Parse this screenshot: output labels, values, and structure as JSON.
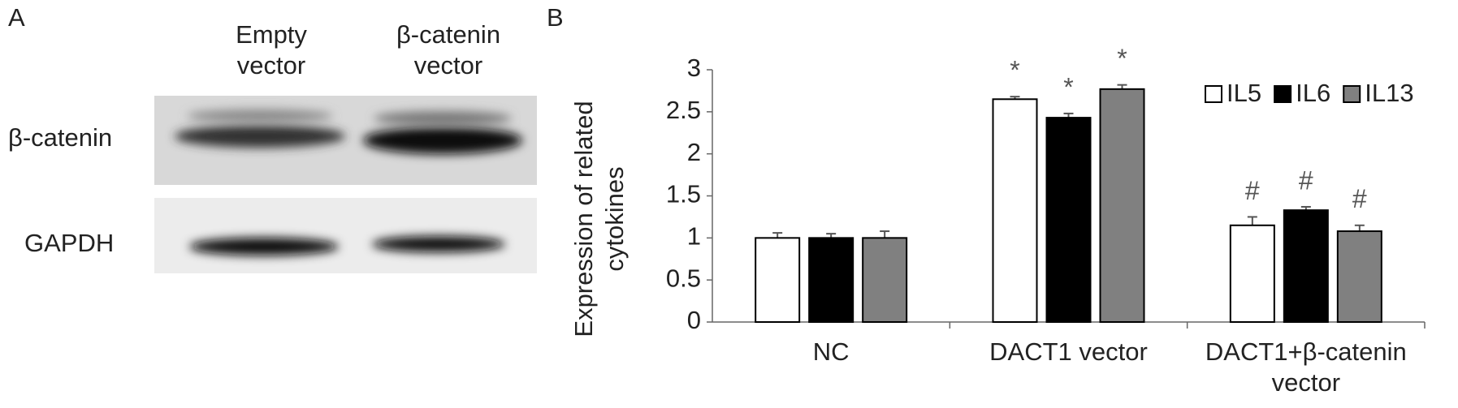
{
  "panel_labels": [
    "A",
    "B"
  ],
  "blot": {
    "lanes": [
      "Empty vector",
      "β-catenin vector"
    ],
    "rows": [
      "β-catenin",
      "GAPDH"
    ]
  },
  "chart_data": {
    "type": "bar",
    "ylabel": "Expression of related cytokines",
    "categories": [
      "NC",
      "DACT1 vector",
      "DACT1+β-catenin vector"
    ],
    "series": [
      {
        "name": "IL5",
        "color": "#ffffff",
        "values": [
          1,
          2.65,
          1.15
        ],
        "errors": [
          0.06,
          0.03,
          0.1
        ],
        "annotations": [
          null,
          "*",
          "#"
        ]
      },
      {
        "name": "IL6",
        "color": "#000000",
        "values": [
          1,
          2.43,
          1.33
        ],
        "errors": [
          0.05,
          0.05,
          0.04
        ],
        "annotations": [
          null,
          "*",
          "#"
        ]
      },
      {
        "name": "IL13",
        "color": "#808080",
        "values": [
          1,
          2.77,
          1.08
        ],
        "errors": [
          0.08,
          0.05,
          0.07
        ],
        "annotations": [
          null,
          "*",
          "#"
        ]
      }
    ],
    "ylim": [
      0,
      3
    ],
    "yticks": [
      0,
      0.5,
      1,
      1.5,
      2,
      2.5,
      3
    ],
    "grid": false,
    "legend": "upper right"
  }
}
